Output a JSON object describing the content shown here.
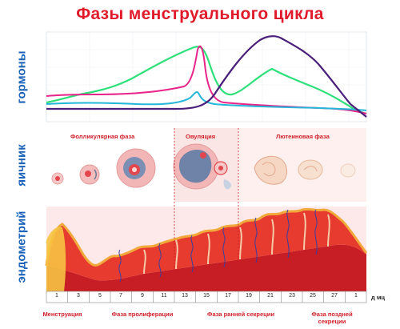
{
  "title": "Фазы менструального цикла",
  "section_labels": {
    "hormones": "гормоны",
    "ovary": "яичник",
    "endometrium": "эндометрий"
  },
  "ovary_phases": {
    "follicular": "Фолликулярная фаза",
    "ovulation": "Овуляция",
    "luteal": "Лютеиновая фаза"
  },
  "day_axis": {
    "unit": "д мц",
    "days": [
      "1",
      "3",
      "5",
      "7",
      "9",
      "11",
      "13",
      "15",
      "17",
      "19",
      "21",
      "23",
      "25",
      "27",
      "1"
    ]
  },
  "endometrium_phases": [
    {
      "label": "Менструация"
    },
    {
      "label": "Фаза пролиферации"
    },
    {
      "label": "Фаза ранней секреции"
    },
    {
      "label": "Фаза поздней\nсекреции"
    }
  ],
  "colors": {
    "title": "#e01a2b",
    "section_label": "#1b63b8",
    "curve_green": "#2ee07a",
    "curve_magenta": "#e8248a",
    "curve_cyan": "#25b6d8",
    "curve_purple": "#4a1f7a"
  }
}
